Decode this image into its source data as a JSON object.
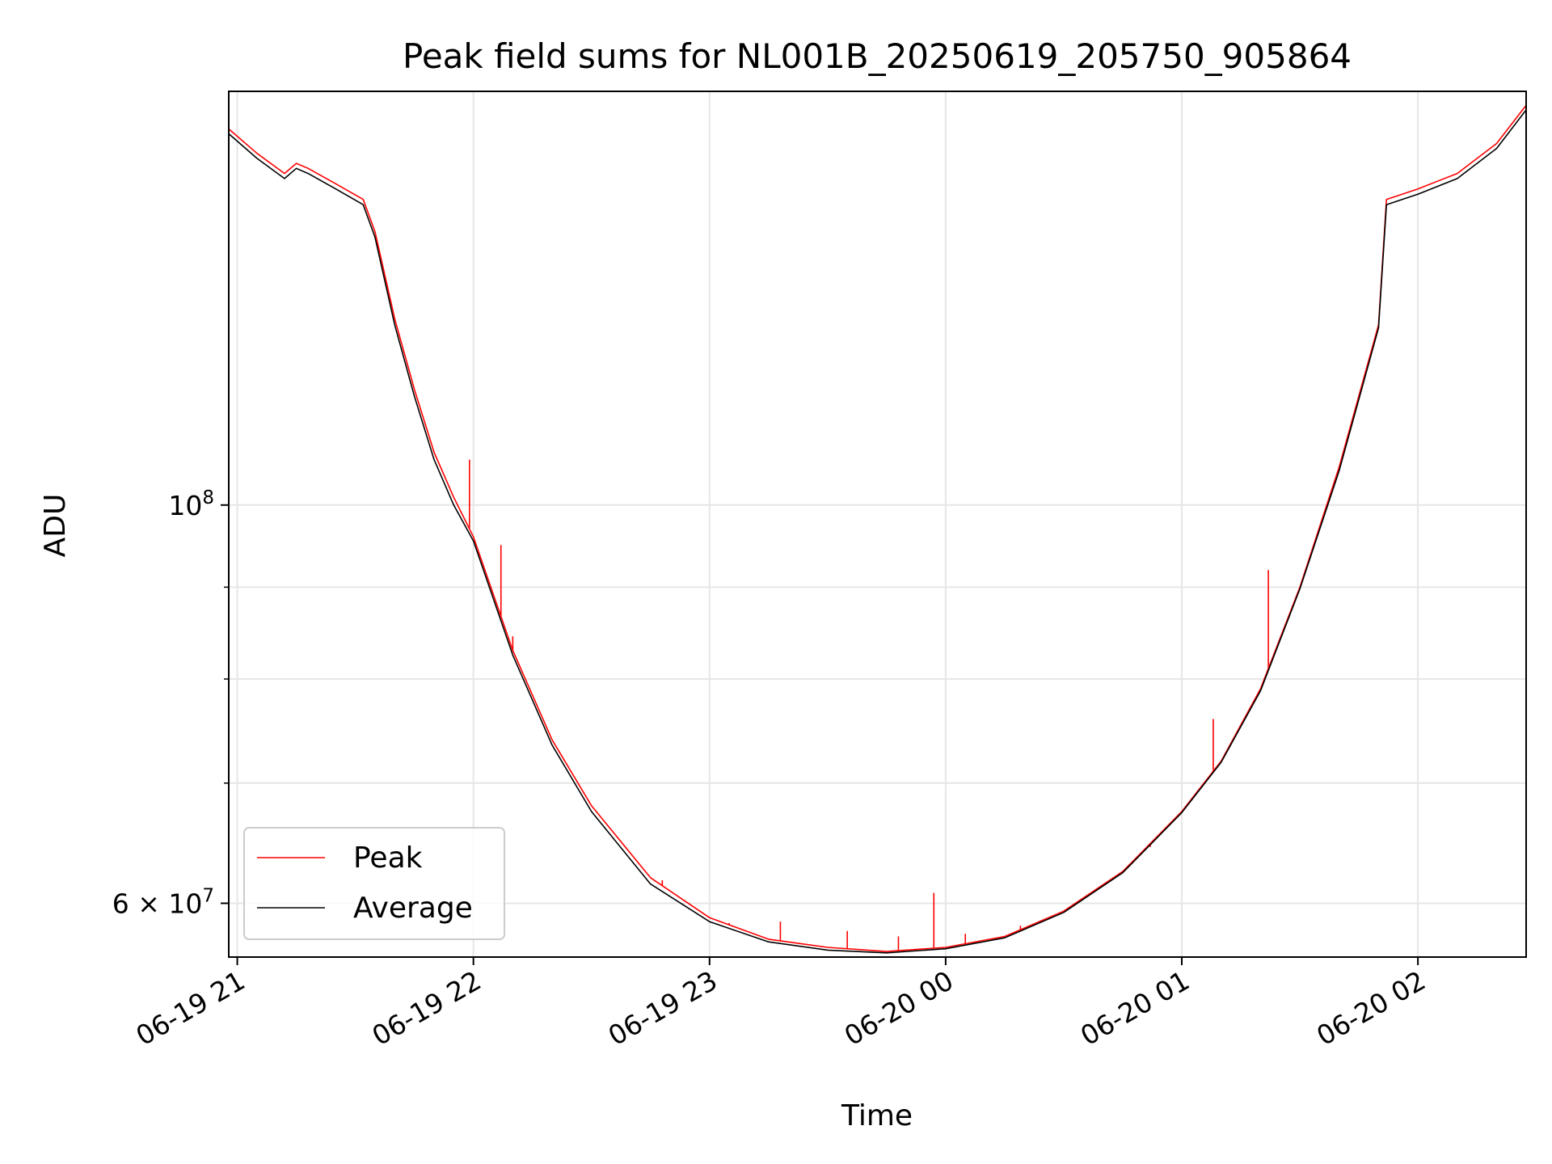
{
  "chart_data": {
    "type": "line",
    "title": "Peak field sums for NL001B_20250619_205750_905864",
    "xlabel": "Time",
    "ylabel": "ADU",
    "yscale": "log",
    "grid": true,
    "legend_position": "lower-left",
    "xlim": [
      "2025-06-19 20:57:50",
      "2025-06-20 02:27:30"
    ],
    "ylim": [
      56000000,
      170000000
    ],
    "x_ticks": [
      {
        "value": "2025-06-19 21:00",
        "label": "06-19 21"
      },
      {
        "value": "2025-06-19 22:00",
        "label": "06-19 22"
      },
      {
        "value": "2025-06-19 23:00",
        "label": "06-19 23"
      },
      {
        "value": "2025-06-20 00:00",
        "label": "06-20 00"
      },
      {
        "value": "2025-06-20 01:00",
        "label": "06-20 01"
      },
      {
        "value": "2025-06-20 02:00",
        "label": "06-20 02"
      }
    ],
    "y_ticks_major": [
      {
        "value": 100000000,
        "label_base": "10",
        "label_exp": "8"
      },
      {
        "value": 60000000,
        "label_base": "6 × 10",
        "label_exp": "7"
      }
    ],
    "y_ticks_minor": [
      70000000,
      80000000,
      90000000
    ],
    "series": [
      {
        "name": "Peak",
        "color": "#ff0000",
        "x": [
          "2025-06-19 20:57:50",
          "2025-06-19 21:05",
          "2025-06-19 21:12",
          "2025-06-19 21:15",
          "2025-06-19 21:18",
          "2025-06-19 21:25",
          "2025-06-19 21:32",
          "2025-06-19 21:35",
          "2025-06-19 21:40",
          "2025-06-19 21:45",
          "2025-06-19 21:50",
          "2025-06-19 21:55",
          "2025-06-19 22:00",
          "2025-06-19 22:10",
          "2025-06-19 22:20",
          "2025-06-19 22:30",
          "2025-06-19 22:45",
          "2025-06-19 23:00",
          "2025-06-19 23:15",
          "2025-06-19 23:30",
          "2025-06-19 23:45",
          "2025-06-20 00:00",
          "2025-06-20 00:15",
          "2025-06-20 00:30",
          "2025-06-20 00:45",
          "2025-06-20 01:00",
          "2025-06-20 01:10",
          "2025-06-20 01:20",
          "2025-06-20 01:30",
          "2025-06-20 01:40",
          "2025-06-20 01:50",
          "2025-06-20 01:52",
          "2025-06-20 02:00",
          "2025-06-20 02:10",
          "2025-06-20 02:20",
          "2025-06-20 02:27:30"
        ],
        "values": [
          162000000,
          157000000,
          153000000,
          155000000,
          154000000,
          151000000,
          148000000,
          142000000,
          127000000,
          116000000,
          107000000,
          101000000,
          96000000,
          83000000,
          74000000,
          68000000,
          62000000,
          58900000,
          57300000,
          56700000,
          56400000,
          56700000,
          57500000,
          59400000,
          62500000,
          67500000,
          72000000,
          79000000,
          90000000,
          105000000,
          126000000,
          148000000,
          150000000,
          153000000,
          159000000,
          167000000
        ],
        "spikes": [
          {
            "x": "2025-06-19 21:59",
            "y": 106000000
          },
          {
            "x": "2025-06-19 22:07",
            "y": 95000000
          },
          {
            "x": "2025-06-19 22:10",
            "y": 84500000
          },
          {
            "x": "2025-06-19 22:48",
            "y": 61800000
          },
          {
            "x": "2025-06-19 23:05",
            "y": 58500000
          },
          {
            "x": "2025-06-19 23:18",
            "y": 58600000
          },
          {
            "x": "2025-06-19 23:35",
            "y": 57900000
          },
          {
            "x": "2025-06-19 23:48",
            "y": 57500000
          },
          {
            "x": "2025-06-19 23:57",
            "y": 60800000
          },
          {
            "x": "2025-06-20 00:05",
            "y": 57700000
          },
          {
            "x": "2025-06-20 00:19",
            "y": 58300000
          },
          {
            "x": "2025-06-20 00:38",
            "y": 61000000
          },
          {
            "x": "2025-06-20 00:52",
            "y": 64500000
          },
          {
            "x": "2025-06-20 01:08",
            "y": 76000000
          },
          {
            "x": "2025-06-20 01:22",
            "y": 92000000
          }
        ]
      },
      {
        "name": "Average",
        "color": "#000000",
        "x": [
          "2025-06-19 20:57:50",
          "2025-06-19 21:05",
          "2025-06-19 21:12",
          "2025-06-19 21:15",
          "2025-06-19 21:18",
          "2025-06-19 21:25",
          "2025-06-19 21:32",
          "2025-06-19 21:35",
          "2025-06-19 21:40",
          "2025-06-19 21:45",
          "2025-06-19 21:50",
          "2025-06-19 21:55",
          "2025-06-19 22:00",
          "2025-06-19 22:10",
          "2025-06-19 22:20",
          "2025-06-19 22:30",
          "2025-06-19 22:45",
          "2025-06-19 23:00",
          "2025-06-19 23:15",
          "2025-06-19 23:30",
          "2025-06-19 23:45",
          "2025-06-20 00:00",
          "2025-06-20 00:15",
          "2025-06-20 00:30",
          "2025-06-20 00:45",
          "2025-06-20 01:00",
          "2025-06-20 01:10",
          "2025-06-20 01:20",
          "2025-06-20 01:30",
          "2025-06-20 01:40",
          "2025-06-20 01:50",
          "2025-06-20 01:52",
          "2025-06-20 02:00",
          "2025-06-20 02:10",
          "2025-06-20 02:20",
          "2025-06-20 02:27:30"
        ],
        "values": [
          161000000,
          156000000,
          152000000,
          154000000,
          153000000,
          150000000,
          147000000,
          141000000,
          126000000,
          115000000,
          106000000,
          100000000,
          95500000,
          82500000,
          73500000,
          67500000,
          61500000,
          58600000,
          57100000,
          56500000,
          56300000,
          56600000,
          57400000,
          59300000,
          62400000,
          67400000,
          71900000,
          78800000,
          89800000,
          104500000,
          125500000,
          147000000,
          149000000,
          152000000,
          158000000,
          166000000
        ]
      }
    ]
  }
}
